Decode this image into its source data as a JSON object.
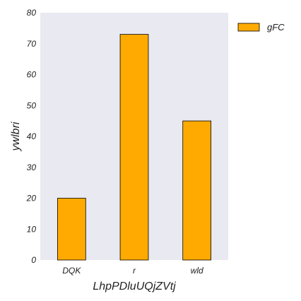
{
  "chart_data": {
    "type": "bar",
    "categories": [
      "DQK",
      "r",
      "wld"
    ],
    "series": [
      {
        "name": "gFC",
        "values": [
          20,
          73,
          45
        ]
      }
    ],
    "xlabel": "LhpPDluUQjZVtj",
    "ylabel": "ywlbri",
    "ylim": [
      0,
      80
    ],
    "yticks": [
      0,
      10,
      20,
      30,
      40,
      50,
      60,
      70,
      80
    ],
    "grid": false,
    "legend": "top-right",
    "colors": {
      "bar": "#ffaa00",
      "plot_background": "#e9e9f1",
      "bar_edge": "#000000"
    }
  }
}
